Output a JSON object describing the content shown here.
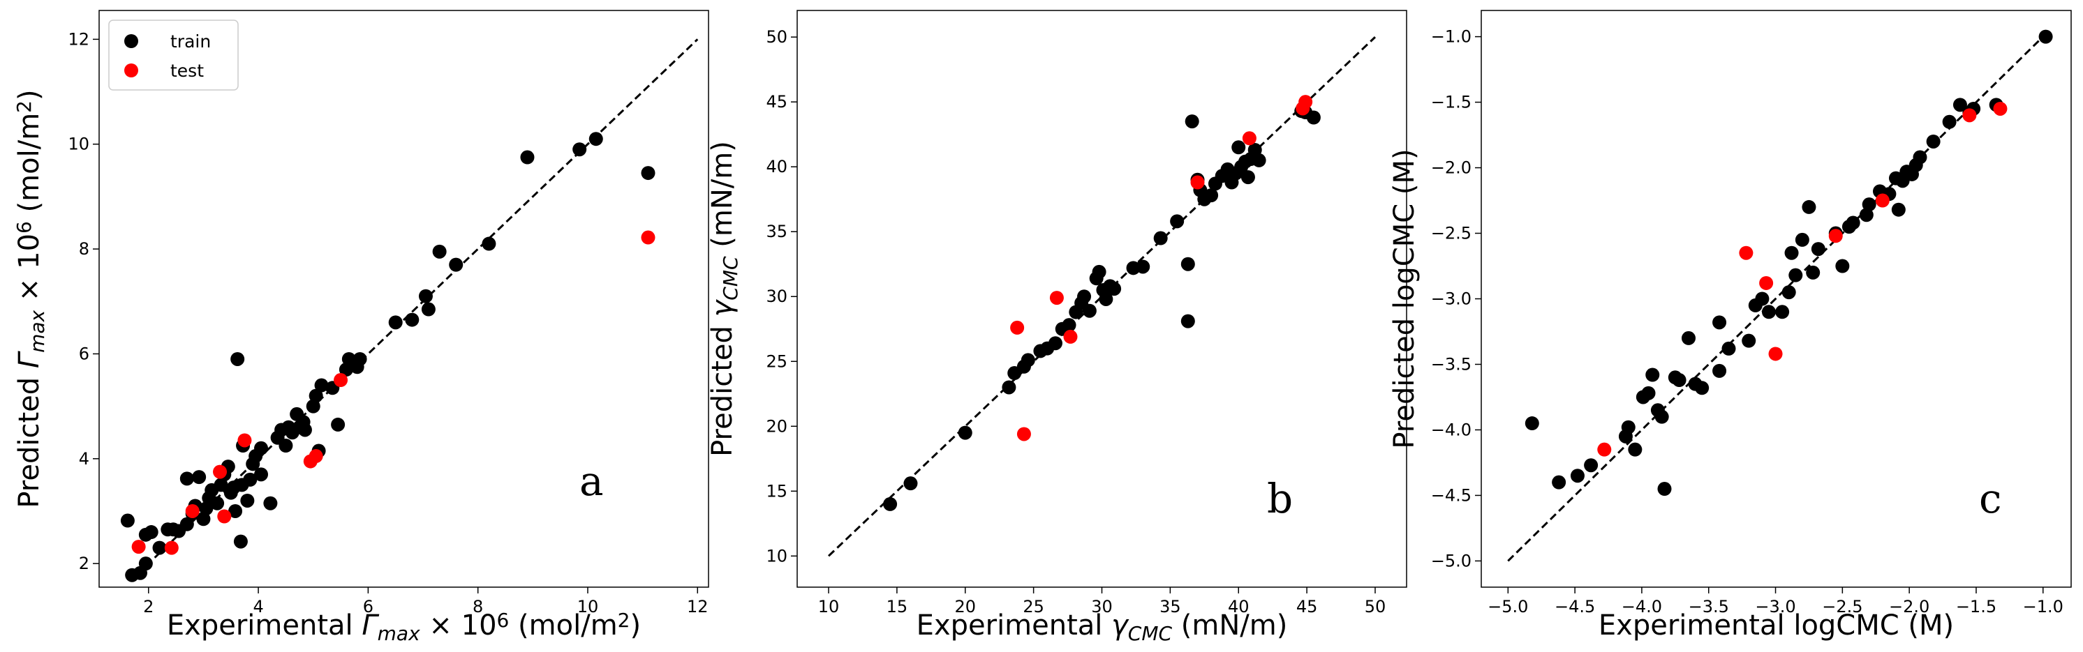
{
  "chart_data": [
    {
      "type": "scatter",
      "panel_letter": "a",
      "xlabel": {
        "pre": "Experimental ",
        "sym": "Γ",
        "sub": "max",
        "mid": " × 10",
        "sup": "6",
        "unit_pre": " (mol/m",
        "unit_sup": "2",
        "unit_post": ")"
      },
      "ylabel": {
        "pre": "Predicted ",
        "sym": "Γ",
        "sub": "max",
        "mid": " × 10",
        "sup": "6",
        "unit_pre": " (mol/m",
        "unit_sup": "2",
        "unit_post": ")"
      },
      "xlim": [
        1.1,
        12.2
      ],
      "ylim": [
        1.55,
        12.55
      ],
      "xticks": [
        2,
        4,
        6,
        8,
        10,
        12
      ],
      "yticks": [
        2,
        4,
        6,
        8,
        10,
        12
      ],
      "xtick_labels": [
        "2",
        "4",
        "6",
        "8",
        "10",
        "12"
      ],
      "ytick_labels": [
        "2",
        "4",
        "6",
        "8",
        "10",
        "12"
      ],
      "identity_line": [
        [
          1.8,
          1.8
        ],
        [
          12,
          12
        ]
      ],
      "legend": {
        "position": "upper-left",
        "entries": [
          "train",
          "test"
        ]
      },
      "series": [
        {
          "name": "train",
          "color": "#000000",
          "points": [
            [
              1.62,
              2.82
            ],
            [
              1.7,
              1.78
            ],
            [
              1.85,
              1.82
            ],
            [
              1.95,
              2.0
            ],
            [
              1.95,
              2.55
            ],
            [
              2.05,
              2.6
            ],
            [
              2.2,
              2.3
            ],
            [
              2.35,
              2.65
            ],
            [
              2.45,
              2.65
            ],
            [
              2.55,
              2.62
            ],
            [
              2.7,
              3.62
            ],
            [
              2.7,
              2.75
            ],
            [
              2.8,
              2.95
            ],
            [
              2.85,
              3.1
            ],
            [
              2.92,
              3.65
            ],
            [
              3.0,
              2.85
            ],
            [
              3.05,
              3.05
            ],
            [
              3.1,
              3.25
            ],
            [
              3.15,
              3.4
            ],
            [
              3.25,
              3.15
            ],
            [
              3.32,
              3.5
            ],
            [
              3.38,
              3.7
            ],
            [
              3.45,
              3.85
            ],
            [
              3.5,
              3.35
            ],
            [
              3.55,
              3.45
            ],
            [
              3.58,
              3.0
            ],
            [
              3.62,
              5.9
            ],
            [
              3.68,
              2.42
            ],
            [
              3.7,
              3.5
            ],
            [
              3.72,
              4.25
            ],
            [
              3.8,
              3.2
            ],
            [
              3.85,
              3.6
            ],
            [
              3.9,
              3.9
            ],
            [
              3.95,
              4.05
            ],
            [
              4.05,
              4.2
            ],
            [
              4.05,
              3.7
            ],
            [
              4.22,
              3.15
            ],
            [
              4.35,
              4.4
            ],
            [
              4.42,
              4.55
            ],
            [
              4.5,
              4.25
            ],
            [
              4.55,
              4.6
            ],
            [
              4.62,
              4.5
            ],
            [
              4.7,
              4.85
            ],
            [
              4.75,
              4.6
            ],
            [
              4.82,
              4.7
            ],
            [
              4.85,
              4.55
            ],
            [
              5.0,
              5.0
            ],
            [
              5.05,
              5.2
            ],
            [
              5.1,
              4.15
            ],
            [
              5.15,
              5.4
            ],
            [
              5.35,
              5.35
            ],
            [
              5.45,
              4.65
            ],
            [
              5.6,
              5.7
            ],
            [
              5.65,
              5.9
            ],
            [
              5.8,
              5.75
            ],
            [
              5.85,
              5.9
            ],
            [
              6.5,
              6.6
            ],
            [
              6.8,
              6.65
            ],
            [
              7.05,
              7.1
            ],
            [
              7.1,
              6.85
            ],
            [
              7.3,
              7.95
            ],
            [
              7.6,
              7.7
            ],
            [
              8.2,
              8.1
            ],
            [
              8.9,
              9.75
            ],
            [
              9.85,
              9.9
            ],
            [
              10.15,
              10.1
            ],
            [
              11.1,
              9.45
            ]
          ]
        },
        {
          "name": "test",
          "color": "#ff0000",
          "points": [
            [
              1.82,
              2.32
            ],
            [
              2.42,
              2.3
            ],
            [
              2.8,
              3.0
            ],
            [
              3.3,
              3.75
            ],
            [
              3.38,
              2.9
            ],
            [
              3.75,
              4.35
            ],
            [
              4.95,
              3.95
            ],
            [
              5.05,
              4.05
            ],
            [
              5.5,
              5.5
            ],
            [
              11.1,
              8.22
            ]
          ]
        }
      ]
    },
    {
      "type": "scatter",
      "panel_letter": "b",
      "xlabel": {
        "pre": "Experimental ",
        "sym": "γ",
        "sub": "CMC",
        "post": " (mN/m)"
      },
      "ylabel": {
        "pre": "Predicted ",
        "sym": "γ",
        "sub": "CMC",
        "post": " (mN/m)"
      },
      "xlim": [
        7.7,
        52.3
      ],
      "ylim": [
        7.6,
        52.05
      ],
      "xticks": [
        10,
        15,
        20,
        25,
        30,
        35,
        40,
        45,
        50
      ],
      "yticks": [
        10,
        15,
        20,
        25,
        30,
        35,
        40,
        45,
        50
      ],
      "xtick_labels": [
        "10",
        "15",
        "20",
        "25",
        "30",
        "35",
        "40",
        "45",
        "50"
      ],
      "ytick_labels": [
        "10",
        "15",
        "20",
        "25",
        "30",
        "35",
        "40",
        "45",
        "50"
      ],
      "identity_line": [
        [
          10,
          10
        ],
        [
          50,
          50
        ]
      ],
      "series": [
        {
          "name": "train",
          "color": "#000000",
          "points": [
            [
              14.5,
              14.0
            ],
            [
              16.0,
              15.6
            ],
            [
              20.0,
              19.5
            ],
            [
              23.2,
              23.0
            ],
            [
              23.6,
              24.1
            ],
            [
              24.3,
              24.6
            ],
            [
              24.6,
              25.1
            ],
            [
              25.5,
              25.8
            ],
            [
              26.0,
              26.0
            ],
            [
              26.6,
              26.4
            ],
            [
              27.1,
              27.5
            ],
            [
              27.6,
              27.8
            ],
            [
              28.1,
              28.8
            ],
            [
              28.5,
              29.5
            ],
            [
              28.7,
              30.0
            ],
            [
              29.1,
              28.9
            ],
            [
              29.6,
              31.4
            ],
            [
              29.8,
              31.9
            ],
            [
              30.1,
              30.5
            ],
            [
              30.3,
              29.8
            ],
            [
              30.6,
              30.8
            ],
            [
              30.9,
              30.6
            ],
            [
              32.3,
              32.2
            ],
            [
              33.0,
              32.3
            ],
            [
              34.3,
              34.5
            ],
            [
              35.5,
              35.8
            ],
            [
              36.3,
              32.5
            ],
            [
              36.3,
              28.1
            ],
            [
              36.6,
              43.5
            ],
            [
              37.0,
              39.0
            ],
            [
              37.2,
              38.2
            ],
            [
              37.5,
              37.5
            ],
            [
              38.0,
              37.8
            ],
            [
              38.3,
              38.7
            ],
            [
              38.8,
              39.3
            ],
            [
              39.2,
              39.8
            ],
            [
              39.5,
              38.8
            ],
            [
              39.8,
              39.5
            ],
            [
              40.0,
              41.5
            ],
            [
              40.2,
              40.0
            ],
            [
              40.5,
              40.4
            ],
            [
              40.7,
              39.2
            ],
            [
              40.9,
              40.6
            ],
            [
              41.2,
              41.3
            ],
            [
              41.5,
              40.5
            ],
            [
              44.6,
              44.3
            ],
            [
              44.9,
              44.2
            ],
            [
              45.5,
              43.8
            ]
          ]
        },
        {
          "name": "test",
          "color": "#ff0000",
          "points": [
            [
              23.8,
              27.6
            ],
            [
              24.3,
              19.4
            ],
            [
              26.7,
              29.9
            ],
            [
              27.7,
              26.9
            ],
            [
              37.0,
              38.8
            ],
            [
              40.8,
              42.2
            ],
            [
              44.7,
              44.5
            ],
            [
              44.9,
              45.0
            ]
          ]
        }
      ]
    },
    {
      "type": "scatter",
      "panel_letter": "c",
      "xlabel": {
        "pre": "Experimental logCMC (M)"
      },
      "ylabel": {
        "pre": "Predicted logCMC (M)"
      },
      "xlim": [
        -5.2,
        -0.79
      ],
      "ylim": [
        -5.2,
        -0.8
      ],
      "xticks": [
        -5.0,
        -4.5,
        -4.0,
        -3.5,
        -3.0,
        -2.5,
        -2.0,
        -1.5,
        -1.0
      ],
      "yticks": [
        -5.0,
        -4.5,
        -4.0,
        -3.5,
        -3.0,
        -2.5,
        -2.0,
        -1.5,
        -1.0
      ],
      "xtick_labels": [
        "−5.0",
        "−4.5",
        "−4.0",
        "−3.5",
        "−3.0",
        "−2.5",
        "−2.0",
        "−1.5",
        "−1.0"
      ],
      "ytick_labels": [
        "−5.0",
        "−4.5",
        "−4.0",
        "−3.5",
        "−3.0",
        "−2.5",
        "−2.0",
        "−1.5",
        "−1.0"
      ],
      "identity_line": [
        [
          -5,
          -5
        ],
        [
          -1,
          -1
        ]
      ],
      "series": [
        {
          "name": "train",
          "color": "#000000",
          "points": [
            [
              -4.82,
              -3.95
            ],
            [
              -4.62,
              -4.4
            ],
            [
              -4.48,
              -4.35
            ],
            [
              -4.38,
              -4.27
            ],
            [
              -4.12,
              -4.05
            ],
            [
              -4.1,
              -3.98
            ],
            [
              -4.05,
              -4.15
            ],
            [
              -3.99,
              -3.75
            ],
            [
              -3.95,
              -3.72
            ],
            [
              -3.92,
              -3.58
            ],
            [
              -3.88,
              -3.85
            ],
            [
              -3.85,
              -3.9
            ],
            [
              -3.83,
              -4.45
            ],
            [
              -3.75,
              -3.6
            ],
            [
              -3.72,
              -3.62
            ],
            [
              -3.65,
              -3.3
            ],
            [
              -3.6,
              -3.65
            ],
            [
              -3.55,
              -3.68
            ],
            [
              -3.42,
              -3.55
            ],
            [
              -3.42,
              -3.18
            ],
            [
              -3.35,
              -3.38
            ],
            [
              -3.2,
              -3.32
            ],
            [
              -3.15,
              -3.05
            ],
            [
              -3.1,
              -3.0
            ],
            [
              -3.05,
              -3.1
            ],
            [
              -2.95,
              -3.1
            ],
            [
              -2.9,
              -2.95
            ],
            [
              -2.88,
              -2.65
            ],
            [
              -2.85,
              -2.82
            ],
            [
              -2.8,
              -2.55
            ],
            [
              -2.75,
              -2.3
            ],
            [
              -2.72,
              -2.8
            ],
            [
              -2.68,
              -2.62
            ],
            [
              -2.55,
              -2.5
            ],
            [
              -2.5,
              -2.75
            ],
            [
              -2.45,
              -2.45
            ],
            [
              -2.42,
              -2.42
            ],
            [
              -2.32,
              -2.36
            ],
            [
              -2.3,
              -2.28
            ],
            [
              -2.22,
              -2.18
            ],
            [
              -2.15,
              -2.2
            ],
            [
              -2.1,
              -2.08
            ],
            [
              -2.08,
              -2.32
            ],
            [
              -2.05,
              -2.1
            ],
            [
              -2.02,
              -2.03
            ],
            [
              -1.98,
              -2.05
            ],
            [
              -1.95,
              -1.98
            ],
            [
              -1.92,
              -1.92
            ],
            [
              -1.82,
              -1.8
            ],
            [
              -1.7,
              -1.65
            ],
            [
              -1.62,
              -1.52
            ],
            [
              -1.55,
              -1.58
            ],
            [
              -1.52,
              -1.55
            ],
            [
              -1.35,
              -1.52
            ],
            [
              -0.98,
              -1.0
            ]
          ]
        },
        {
          "name": "test",
          "color": "#ff0000",
          "points": [
            [
              -4.28,
              -4.15
            ],
            [
              -3.22,
              -2.65
            ],
            [
              -3.07,
              -2.88
            ],
            [
              -3.0,
              -3.42
            ],
            [
              -2.55,
              -2.52
            ],
            [
              -2.2,
              -2.25
            ],
            [
              -1.55,
              -1.6
            ],
            [
              -1.32,
              -1.55
            ]
          ]
        }
      ]
    }
  ]
}
